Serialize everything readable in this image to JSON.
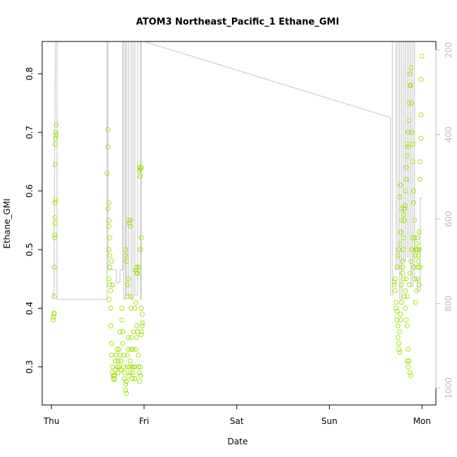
{
  "chart_data": {
    "type": "scatter",
    "title": "ATOM3 Northeast_Pacific_1 Ethane_GMI",
    "xlabel": "Date",
    "ylabel": "Ethane_GMI",
    "xlim_days": [
      -0.1,
      4.15
    ],
    "ylim": [
      0.235,
      0.855
    ],
    "x_ticks": [
      {
        "label": "Thu",
        "day": 0
      },
      {
        "label": "Fri",
        "day": 1
      },
      {
        "label": "Sat",
        "day": 2
      },
      {
        "label": "Sun",
        "day": 3
      },
      {
        "label": "Mon",
        "day": 4
      }
    ],
    "y_ticks": [
      0.3,
      0.4,
      0.5,
      0.6,
      0.7,
      0.8
    ],
    "y2_ticks": [
      200,
      400,
      600,
      800,
      1000
    ],
    "y2_reversed": true,
    "y2_lim": [
      1040,
      180
    ],
    "grid": false,
    "colors": {
      "points": "#9be000",
      "line": "#c4c4c4",
      "right_axis": "#bbbbbb"
    },
    "series": [
      {
        "marker": "open-circle",
        "points": [
          [
            0.02,
            0.38
          ],
          [
            0.02,
            0.385
          ],
          [
            0.03,
            0.39
          ],
          [
            0.03,
            0.392
          ],
          [
            0.03,
            0.42
          ],
          [
            0.03,
            0.47
          ],
          [
            0.035,
            0.52
          ],
          [
            0.035,
            0.525
          ],
          [
            0.04,
            0.545
          ],
          [
            0.04,
            0.555
          ],
          [
            0.04,
            0.58
          ],
          [
            0.045,
            0.585
          ],
          [
            0.04,
            0.645
          ],
          [
            0.04,
            0.68
          ],
          [
            0.045,
            0.69
          ],
          [
            0.05,
            0.695
          ],
          [
            0.045,
            0.7
          ],
          [
            0.05,
            0.713
          ],
          [
            0.6,
            0.63
          ],
          [
            0.61,
            0.675
          ],
          [
            0.61,
            0.705
          ],
          [
            0.61,
            0.57
          ],
          [
            0.62,
            0.58
          ],
          [
            0.62,
            0.55
          ],
          [
            0.62,
            0.54
          ],
          [
            0.63,
            0.52
          ],
          [
            0.62,
            0.5
          ],
          [
            0.63,
            0.49
          ],
          [
            0.63,
            0.47
          ],
          [
            0.62,
            0.45
          ],
          [
            0.64,
            0.43
          ],
          [
            0.62,
            0.415
          ],
          [
            0.63,
            0.44
          ],
          [
            0.65,
            0.48
          ],
          [
            0.66,
            0.44
          ],
          [
            0.64,
            0.4
          ],
          [
            0.64,
            0.37
          ],
          [
            0.65,
            0.34
          ],
          [
            0.65,
            0.32
          ],
          [
            0.66,
            0.3
          ],
          [
            0.66,
            0.29
          ],
          [
            0.67,
            0.285
          ],
          [
            0.67,
            0.28
          ],
          [
            0.68,
            0.278
          ],
          [
            0.68,
            0.285
          ],
          [
            0.69,
            0.31
          ],
          [
            0.69,
            0.295
          ],
          [
            0.7,
            0.32
          ],
          [
            0.71,
            0.33
          ],
          [
            0.71,
            0.3
          ],
          [
            0.72,
            0.29
          ],
          [
            0.72,
            0.31
          ],
          [
            0.73,
            0.3
          ],
          [
            0.73,
            0.33
          ],
          [
            0.74,
            0.36
          ],
          [
            0.74,
            0.32
          ],
          [
            0.75,
            0.295
          ],
          [
            0.75,
            0.31
          ],
          [
            0.76,
            0.4
          ],
          [
            0.76,
            0.38
          ],
          [
            0.77,
            0.36
          ],
          [
            0.77,
            0.34
          ],
          [
            0.78,
            0.32
          ],
          [
            0.78,
            0.3
          ],
          [
            0.79,
            0.29
          ],
          [
            0.79,
            0.28
          ],
          [
            0.8,
            0.27
          ],
          [
            0.8,
            0.26
          ],
          [
            0.81,
            0.255
          ],
          [
            0.81,
            0.275
          ],
          [
            0.82,
            0.3
          ],
          [
            0.82,
            0.32
          ],
          [
            0.83,
            0.33
          ],
          [
            0.83,
            0.35
          ],
          [
            0.84,
            0.3
          ],
          [
            0.84,
            0.285
          ],
          [
            0.85,
            0.29
          ],
          [
            0.85,
            0.31
          ],
          [
            0.86,
            0.33
          ],
          [
            0.86,
            0.35
          ],
          [
            0.87,
            0.3
          ],
          [
            0.87,
            0.28
          ],
          [
            0.88,
            0.29
          ],
          [
            0.88,
            0.33
          ],
          [
            0.89,
            0.36
          ],
          [
            0.89,
            0.3
          ],
          [
            0.9,
            0.28
          ],
          [
            0.9,
            0.3
          ],
          [
            0.91,
            0.33
          ],
          [
            0.92,
            0.35
          ],
          [
            0.92,
            0.37
          ],
          [
            0.93,
            0.36
          ],
          [
            0.94,
            0.32
          ],
          [
            0.94,
            0.3
          ],
          [
            0.95,
            0.29
          ],
          [
            0.95,
            0.275
          ],
          [
            0.96,
            0.285
          ],
          [
            0.96,
            0.3
          ],
          [
            0.97,
            0.36
          ],
          [
            0.97,
            0.355
          ],
          [
            0.98,
            0.37
          ],
          [
            0.98,
            0.375
          ],
          [
            0.8,
            0.49
          ],
          [
            0.8,
            0.5
          ],
          [
            0.81,
            0.48
          ],
          [
            0.82,
            0.44
          ],
          [
            0.82,
            0.42
          ],
          [
            0.83,
            0.45
          ],
          [
            0.83,
            0.55
          ],
          [
            0.84,
            0.545
          ],
          [
            0.85,
            0.55
          ],
          [
            0.85,
            0.54
          ],
          [
            0.86,
            0.42
          ],
          [
            0.86,
            0.4
          ],
          [
            0.9,
            0.4
          ],
          [
            0.91,
            0.41
          ],
          [
            0.91,
            0.465
          ],
          [
            0.92,
            0.47
          ],
          [
            0.92,
            0.46
          ],
          [
            0.93,
            0.46
          ],
          [
            0.94,
            0.47
          ],
          [
            0.95,
            0.64
          ],
          [
            0.95,
            0.635
          ],
          [
            0.96,
            0.625
          ],
          [
            0.96,
            0.638
          ],
          [
            0.97,
            0.64
          ],
          [
            0.96,
            0.5
          ],
          [
            0.97,
            0.52
          ],
          [
            0.97,
            0.4
          ],
          [
            0.98,
            0.39
          ],
          [
            3.7,
            0.44
          ],
          [
            3.7,
            0.445
          ],
          [
            3.71,
            0.45
          ],
          [
            3.71,
            0.43
          ],
          [
            3.72,
            0.41
          ],
          [
            3.72,
            0.4
          ],
          [
            3.73,
            0.395
          ],
          [
            3.73,
            0.38
          ],
          [
            3.74,
            0.37
          ],
          [
            3.74,
            0.35
          ],
          [
            3.75,
            0.33
          ],
          [
            3.75,
            0.34
          ],
          [
            3.76,
            0.325
          ],
          [
            3.76,
            0.36
          ],
          [
            3.77,
            0.38
          ],
          [
            3.77,
            0.39
          ],
          [
            3.78,
            0.41
          ],
          [
            3.78,
            0.44
          ],
          [
            3.79,
            0.46
          ],
          [
            3.79,
            0.48
          ],
          [
            3.8,
            0.5
          ],
          [
            3.8,
            0.52
          ],
          [
            3.81,
            0.55
          ],
          [
            3.81,
            0.57
          ],
          [
            3.82,
            0.575
          ],
          [
            3.82,
            0.6
          ],
          [
            3.83,
            0.62
          ],
          [
            3.83,
            0.64
          ],
          [
            3.84,
            0.66
          ],
          [
            3.84,
            0.68
          ],
          [
            3.85,
            0.675
          ],
          [
            3.85,
            0.7
          ],
          [
            3.86,
            0.72
          ],
          [
            3.86,
            0.75
          ],
          [
            3.87,
            0.78
          ],
          [
            3.87,
            0.8
          ],
          [
            3.88,
            0.81
          ],
          [
            3.88,
            0.78
          ],
          [
            3.89,
            0.75
          ],
          [
            3.89,
            0.7
          ],
          [
            3.9,
            0.68
          ],
          [
            3.9,
            0.65
          ],
          [
            3.91,
            0.6
          ],
          [
            3.91,
            0.58
          ],
          [
            3.92,
            0.55
          ],
          [
            3.92,
            0.52
          ],
          [
            3.93,
            0.5
          ],
          [
            3.93,
            0.49
          ],
          [
            3.94,
            0.5
          ],
          [
            3.94,
            0.51
          ],
          [
            3.95,
            0.52
          ],
          [
            3.95,
            0.5
          ],
          [
            3.96,
            0.49
          ],
          [
            3.96,
            0.48
          ],
          [
            3.97,
            0.5
          ],
          [
            3.97,
            0.53
          ],
          [
            3.98,
            0.62
          ],
          [
            3.98,
            0.65
          ],
          [
            3.99,
            0.73
          ],
          [
            3.99,
            0.79
          ],
          [
            4.0,
            0.83
          ],
          [
            3.99,
            0.69
          ],
          [
            3.98,
            0.47
          ],
          [
            3.97,
            0.44
          ],
          [
            3.73,
            0.47
          ],
          [
            3.74,
            0.49
          ],
          [
            3.75,
            0.5
          ],
          [
            3.76,
            0.51
          ],
          [
            3.77,
            0.53
          ],
          [
            3.78,
            0.55
          ],
          [
            3.79,
            0.47
          ],
          [
            3.8,
            0.45
          ],
          [
            3.81,
            0.42
          ],
          [
            3.82,
            0.4
          ],
          [
            3.83,
            0.38
          ],
          [
            3.84,
            0.37
          ],
          [
            3.85,
            0.33
          ],
          [
            3.86,
            0.31
          ],
          [
            3.87,
            0.29
          ],
          [
            3.88,
            0.285
          ],
          [
            3.84,
            0.31
          ],
          [
            3.85,
            0.3
          ],
          [
            3.76,
            0.59
          ],
          [
            3.77,
            0.61
          ],
          [
            3.78,
            0.57
          ],
          [
            3.8,
            0.56
          ],
          [
            3.82,
            0.43
          ],
          [
            3.83,
            0.45
          ],
          [
            3.84,
            0.42
          ],
          [
            3.86,
            0.44
          ],
          [
            3.87,
            0.46
          ],
          [
            3.88,
            0.48
          ],
          [
            3.89,
            0.5
          ],
          [
            3.9,
            0.52
          ],
          [
            3.91,
            0.47
          ],
          [
            3.92,
            0.45
          ],
          [
            3.93,
            0.41
          ],
          [
            3.94,
            0.43
          ],
          [
            3.95,
            0.45
          ],
          [
            3.96,
            0.47
          ]
        ]
      }
    ],
    "line": {
      "axis": "right",
      "points": [
        [
          0.02,
          790
        ],
        [
          0.02,
          775
        ],
        [
          0.03,
          780
        ],
        [
          0.03,
          620
        ],
        [
          0.035,
          420
        ],
        [
          0.04,
          270
        ],
        [
          0.045,
          180
        ],
        [
          0.05,
          180
        ],
        [
          0.06,
          180
        ],
        [
          0.06,
          790
        ],
        [
          0.6,
          790
        ],
        [
          0.6,
          180
        ],
        [
          0.61,
          180
        ],
        [
          0.61,
          720
        ],
        [
          0.7,
          720
        ],
        [
          0.7,
          750
        ],
        [
          0.74,
          750
        ],
        [
          0.74,
          720
        ],
        [
          0.77,
          720
        ],
        [
          0.77,
          180
        ],
        [
          0.78,
          180
        ],
        [
          0.78,
          790
        ],
        [
          0.8,
          790
        ],
        [
          0.8,
          180
        ],
        [
          0.81,
          180
        ],
        [
          0.81,
          780
        ],
        [
          0.83,
          780
        ],
        [
          0.83,
          180
        ],
        [
          0.86,
          180
        ],
        [
          0.86,
          790
        ],
        [
          0.88,
          790
        ],
        [
          0.88,
          180
        ],
        [
          0.9,
          180
        ],
        [
          0.9,
          780
        ],
        [
          0.93,
          780
        ],
        [
          0.93,
          180
        ],
        [
          0.96,
          180
        ],
        [
          0.96,
          790
        ],
        [
          0.97,
          790
        ],
        [
          0.97,
          180
        ],
        [
          1.0,
          180
        ],
        [
          3.66,
          360
        ],
        [
          3.66,
          780
        ],
        [
          3.68,
          780
        ],
        [
          3.68,
          180
        ],
        [
          3.72,
          180
        ],
        [
          3.72,
          720
        ],
        [
          3.74,
          720
        ],
        [
          3.74,
          180
        ],
        [
          3.76,
          180
        ],
        [
          3.76,
          790
        ],
        [
          3.78,
          790
        ],
        [
          3.78,
          180
        ],
        [
          3.8,
          180
        ],
        [
          3.8,
          700
        ],
        [
          3.82,
          700
        ],
        [
          3.82,
          180
        ],
        [
          3.84,
          180
        ],
        [
          3.84,
          690
        ],
        [
          3.86,
          690
        ],
        [
          3.86,
          180
        ],
        [
          3.88,
          180
        ],
        [
          3.88,
          760
        ],
        [
          3.9,
          760
        ],
        [
          3.9,
          180
        ],
        [
          3.92,
          180
        ],
        [
          3.92,
          740
        ],
        [
          3.95,
          740
        ],
        [
          3.95,
          770
        ],
        [
          3.98,
          770
        ],
        [
          3.98,
          550
        ],
        [
          4.0,
          550
        ]
      ]
    }
  }
}
